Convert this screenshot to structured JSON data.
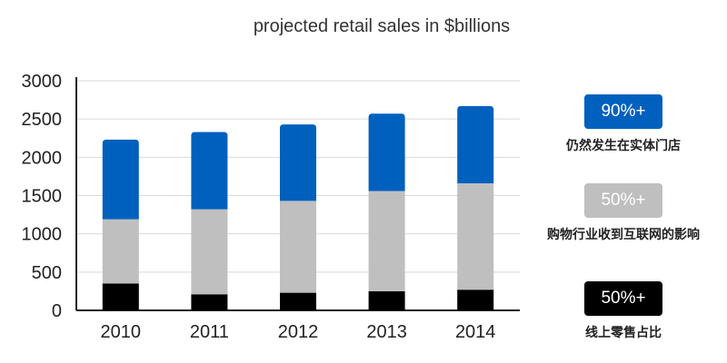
{
  "chart_data": {
    "type": "bar",
    "stacked": true,
    "title": "projected retail sales in $billions",
    "categories": [
      "2010",
      "2011",
      "2012",
      "2013",
      "2014"
    ],
    "series": [
      {
        "key": "bottom",
        "color": "#000000",
        "values": [
          350,
          210,
          230,
          250,
          270
        ]
      },
      {
        "key": "middle",
        "color": "#bfbfbf",
        "values": [
          840,
          1110,
          1200,
          1310,
          1390
        ]
      },
      {
        "key": "top",
        "color": "#0060be",
        "values": [
          1040,
          1010,
          1000,
          1010,
          1010
        ]
      }
    ],
    "ylim": [
      0,
      3000
    ],
    "yticks": [
      "0",
      "500",
      "1000",
      "1500",
      "2000",
      "2500",
      "3000"
    ],
    "grid": true
  },
  "legend": [
    {
      "badge": "90%+",
      "caption": "仍然发生在实体门店",
      "color": "#0060be"
    },
    {
      "badge": "50%+",
      "caption": "购物行业收到互联网的影响",
      "color": "#bfbfbf"
    },
    {
      "badge": "50%+",
      "caption": "线上零售占比",
      "color": "#000000"
    }
  ]
}
